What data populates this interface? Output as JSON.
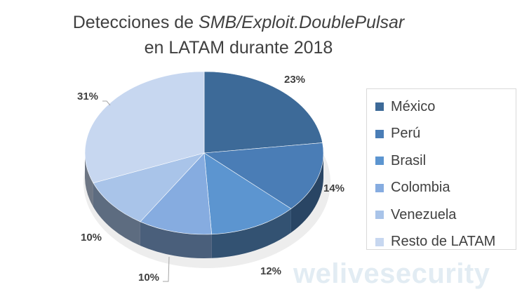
{
  "title": {
    "line1_prefix": "Detecciones de ",
    "line1_italic": "SMB/Exploit.DoublePulsar",
    "line2": "en LATAM durante 2018"
  },
  "watermark": "welivesecurity",
  "chart_data": {
    "type": "pie",
    "title": "Detecciones de SMB/Exploit.DoublePulsar en LATAM durante 2018",
    "legend_position": "right",
    "slices": [
      {
        "label": "México",
        "value": 23,
        "display": "23%",
        "color": "#3d6a98"
      },
      {
        "label": "Perú",
        "value": 14,
        "display": "14%",
        "color": "#4a7db6"
      },
      {
        "label": "Brasil",
        "value": 12,
        "display": "12%",
        "color": "#5c95d0"
      },
      {
        "label": "Colombia",
        "value": 10,
        "display": "10%",
        "color": "#86ace0"
      },
      {
        "label": "Venezuela",
        "value": 10,
        "display": "10%",
        "color": "#a9c4e9"
      },
      {
        "label": "Resto de LATAM",
        "value": 31,
        "display": "31%",
        "color": "#c7d7f0"
      }
    ]
  }
}
